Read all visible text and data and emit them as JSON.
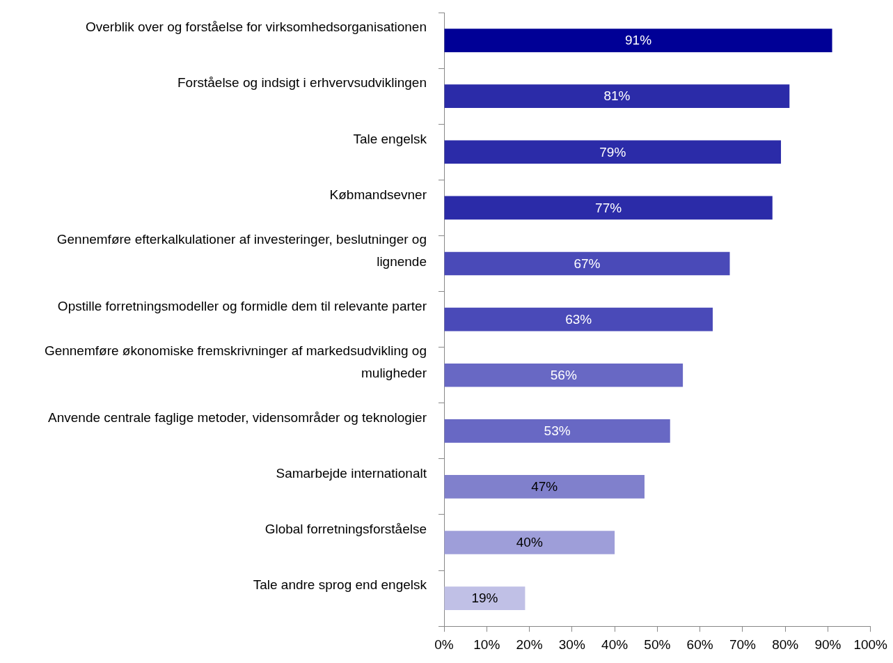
{
  "chart_data": {
    "type": "bar",
    "orientation": "horizontal",
    "categories": [
      "Overblik over og forståelse for virksomhedsorganisationen",
      "Forståelse og indsigt i erhvervsudviklingen",
      "Tale engelsk",
      "Købmandsevner",
      "Gennemføre efterkalkulationer af investeringer, beslutninger og lignende",
      "Opstille forretningsmodeller og formidle dem til relevante parter",
      "Gennemføre økonomiske fremskrivninger af markedsudvikling og muligheder",
      "Anvende centrale faglige metoder, vidensområder og teknologier",
      "Samarbejde internationalt",
      "Global forretningsforståelse",
      "Tale andre sprog end engelsk"
    ],
    "values": [
      91,
      81,
      79,
      77,
      67,
      63,
      56,
      53,
      47,
      40,
      19
    ],
    "colors": [
      "#000096",
      "#2b2ba8",
      "#2b2ba8",
      "#2b2ba8",
      "#4a4ab8",
      "#4a4ab8",
      "#6868c4",
      "#6868c4",
      "#8080cc",
      "#9e9ed9",
      "#c0c0e6"
    ],
    "value_labels": [
      "91%",
      "81%",
      "79%",
      "77%",
      "67%",
      "63%",
      "56%",
      "53%",
      "47%",
      "40%",
      "19%"
    ],
    "xlim": [
      0,
      100
    ],
    "xticks": [
      {
        "value": 0,
        "label": "0%"
      },
      {
        "value": 10,
        "label": "10%"
      },
      {
        "value": 20,
        "label": "20%"
      },
      {
        "value": 30,
        "label": "30%"
      },
      {
        "value": 40,
        "label": "40%"
      },
      {
        "value": 50,
        "label": "50%"
      },
      {
        "value": 60,
        "label": "60%"
      },
      {
        "value": 70,
        "label": "70%"
      },
      {
        "value": 80,
        "label": "80%"
      },
      {
        "value": 90,
        "label": "90%"
      },
      {
        "value": 100,
        "label": "100%"
      }
    ],
    "grid": false,
    "legend": false
  }
}
